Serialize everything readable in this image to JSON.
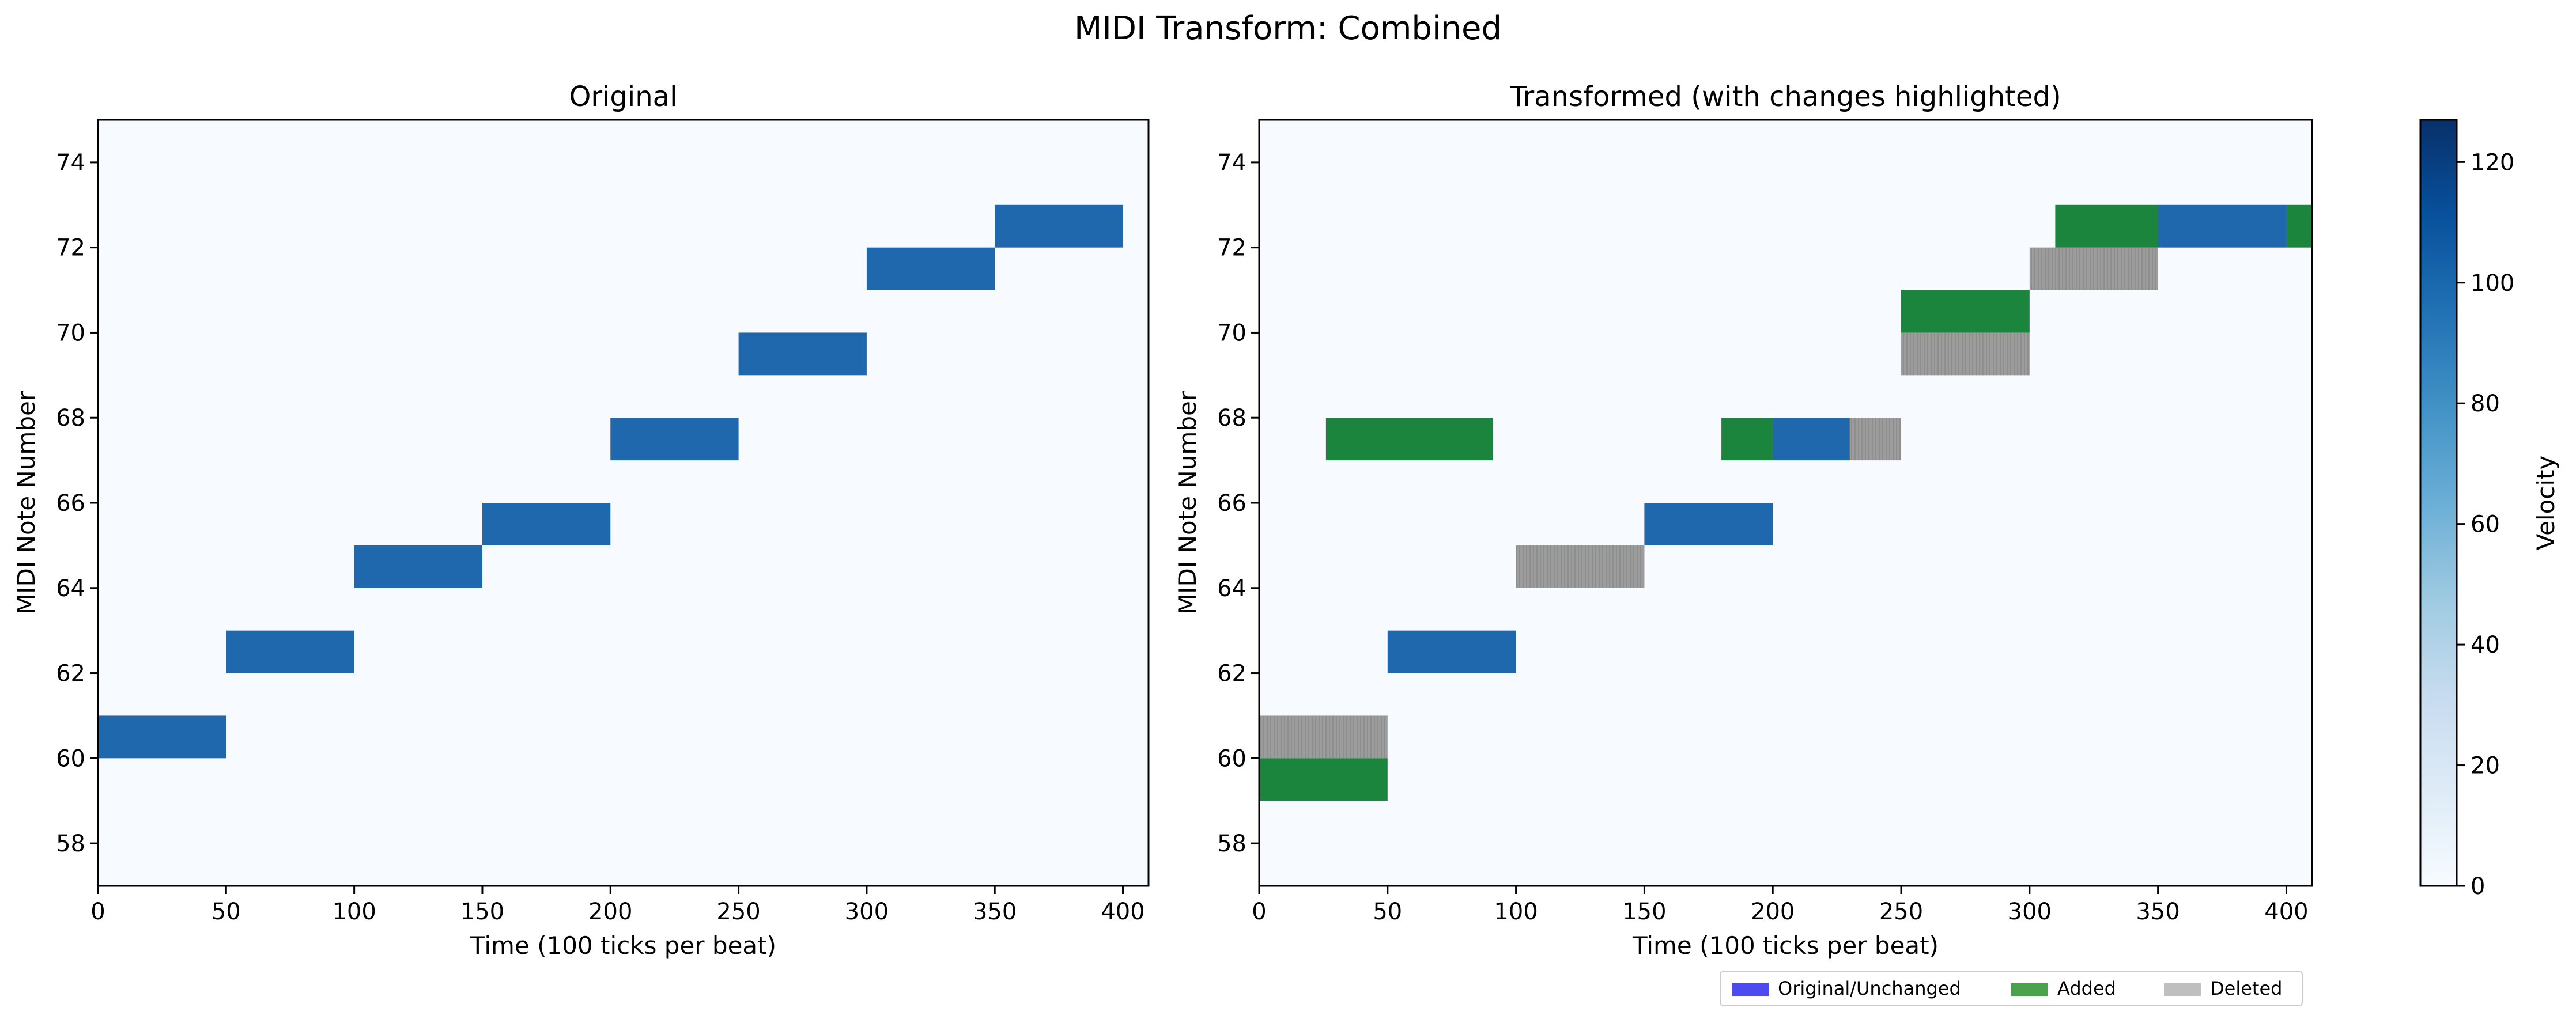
{
  "figure": {
    "suptitle": "MIDI Transform: Combined"
  },
  "colors": {
    "background": "#f7fbff",
    "note_blue": "#1f68ae",
    "added": "#1b853e",
    "deleted": "#9c9c9c",
    "legend_original": "#4b4bf0",
    "legend_added": "#4ca24c",
    "legend_deleted": "#bfbfbf"
  },
  "chart_data": [
    {
      "id": "original",
      "type": "heatmap",
      "title": "Original",
      "xlabel": "Time (100 ticks per beat)",
      "ylabel": "MIDI Note Number",
      "xlim": [
        0,
        410
      ],
      "ylim": [
        57,
        75
      ],
      "xticks": [
        0,
        50,
        100,
        150,
        200,
        250,
        300,
        350,
        400
      ],
      "yticks": [
        58,
        60,
        62,
        64,
        66,
        68,
        70,
        72,
        74
      ],
      "notes": [
        {
          "start": 0,
          "end": 50,
          "pitch": 60,
          "velocity": 100,
          "status": "original"
        },
        {
          "start": 50,
          "end": 100,
          "pitch": 62,
          "velocity": 100,
          "status": "original"
        },
        {
          "start": 100,
          "end": 150,
          "pitch": 64,
          "velocity": 100,
          "status": "original"
        },
        {
          "start": 150,
          "end": 200,
          "pitch": 65,
          "velocity": 100,
          "status": "original"
        },
        {
          "start": 200,
          "end": 250,
          "pitch": 67,
          "velocity": 100,
          "status": "original"
        },
        {
          "start": 250,
          "end": 300,
          "pitch": 69,
          "velocity": 100,
          "status": "original"
        },
        {
          "start": 300,
          "end": 350,
          "pitch": 71,
          "velocity": 100,
          "status": "original"
        },
        {
          "start": 350,
          "end": 400,
          "pitch": 72,
          "velocity": 100,
          "status": "original"
        }
      ]
    },
    {
      "id": "transformed",
      "type": "heatmap",
      "title": "Transformed (with changes highlighted)",
      "xlabel": "Time (100 ticks per beat)",
      "ylabel": "MIDI Note Number",
      "xlim": [
        0,
        410
      ],
      "ylim": [
        57,
        75
      ],
      "xticks": [
        0,
        50,
        100,
        150,
        200,
        250,
        300,
        350,
        400
      ],
      "yticks": [
        58,
        60,
        62,
        64,
        66,
        68,
        70,
        72,
        74
      ],
      "notes": [
        {
          "start": 0,
          "end": 50,
          "pitch": 60,
          "status": "deleted"
        },
        {
          "start": 0,
          "end": 50,
          "pitch": 59,
          "status": "added"
        },
        {
          "start": 50,
          "end": 100,
          "pitch": 62,
          "velocity": 100,
          "status": "unchanged"
        },
        {
          "start": 100,
          "end": 150,
          "pitch": 64,
          "status": "deleted"
        },
        {
          "start": 150,
          "end": 200,
          "pitch": 65,
          "velocity": 100,
          "status": "unchanged"
        },
        {
          "start": 26,
          "end": 91,
          "pitch": 67,
          "status": "added"
        },
        {
          "start": 180,
          "end": 200,
          "pitch": 67,
          "status": "added"
        },
        {
          "start": 200,
          "end": 230,
          "pitch": 67,
          "velocity": 100,
          "status": "unchanged"
        },
        {
          "start": 230,
          "end": 250,
          "pitch": 67,
          "status": "deleted"
        },
        {
          "start": 250,
          "end": 300,
          "pitch": 69,
          "status": "deleted"
        },
        {
          "start": 250,
          "end": 300,
          "pitch": 70,
          "status": "added"
        },
        {
          "start": 300,
          "end": 350,
          "pitch": 71,
          "status": "deleted"
        },
        {
          "start": 310,
          "end": 350,
          "pitch": 72,
          "status": "added"
        },
        {
          "start": 350,
          "end": 400,
          "pitch": 72,
          "velocity": 100,
          "status": "unchanged"
        },
        {
          "start": 400,
          "end": 410,
          "pitch": 72,
          "status": "added"
        }
      ],
      "legend": {
        "placement": "below-right",
        "entries": [
          "Original/Unchanged",
          "Added",
          "Deleted"
        ]
      }
    }
  ],
  "colorbar": {
    "label": "Velocity",
    "min": 0,
    "max": 127,
    "ticks": [
      0,
      20,
      40,
      60,
      80,
      100,
      120
    ]
  }
}
